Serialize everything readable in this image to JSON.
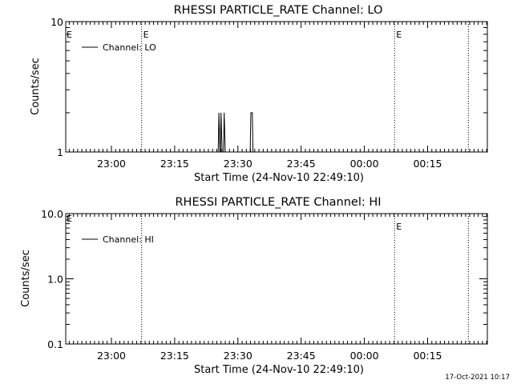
{
  "footer_timestamp": "17-Oct-2021 10:17",
  "chart_data": [
    {
      "type": "line",
      "title": "RHESSI PARTICLE_RATE Channel: LO",
      "xlabel": "Start Time (24-Nov-10 22:49:10)",
      "ylabel": "Counts/sec",
      "yscale": "log",
      "ylim": [
        1,
        10
      ],
      "yticks": [
        {
          "value": 1,
          "label": "1"
        },
        {
          "value": 10,
          "label": "10"
        }
      ],
      "xlim": [
        "22:49:10",
        "00:29:10"
      ],
      "xticks": [
        "23:00",
        "23:15",
        "23:30",
        "23:45",
        "00:00",
        "00:15"
      ],
      "grid": false,
      "legend": {
        "position": "top-left",
        "label": "Channel: LO"
      },
      "series": [
        {
          "name": "Channel: LO",
          "points": [
            {
              "x": "23:25:20",
              "y": 1
            },
            {
              "x": "23:25:30",
              "y": 2
            },
            {
              "x": "23:25:45",
              "y": 1
            },
            {
              "x": "23:25:50",
              "y": 1
            },
            {
              "x": "23:26:00",
              "y": 2
            },
            {
              "x": "23:26:15",
              "y": 1
            },
            {
              "x": "23:26:35",
              "y": 1
            },
            {
              "x": "23:26:45",
              "y": 2
            },
            {
              "x": "23:27:00",
              "y": 1
            },
            {
              "x": "23:32:55",
              "y": 1
            },
            {
              "x": "23:33:05",
              "y": 2
            },
            {
              "x": "23:33:25",
              "y": 2
            },
            {
              "x": "23:33:35",
              "y": 1
            }
          ]
        }
      ],
      "markers": [
        {
          "x": "23:07:10",
          "label": "E"
        },
        {
          "x": "00:07:10",
          "label": "E"
        },
        {
          "x": "00:24:40",
          "label": ""
        }
      ]
    },
    {
      "type": "line",
      "title": "RHESSI PARTICLE_RATE Channel: HI",
      "xlabel": "Start Time (24-Nov-10 22:49:10)",
      "ylabel": "Counts/sec",
      "yscale": "log",
      "ylim": [
        0.1,
        10
      ],
      "yticks": [
        {
          "value": 0.1,
          "label": "0.1"
        },
        {
          "value": 1,
          "label": "1.0"
        },
        {
          "value": 10,
          "label": "10.0"
        }
      ],
      "xlim": [
        "22:49:10",
        "00:29:10"
      ],
      "xticks": [
        "23:00",
        "23:15",
        "23:30",
        "23:45",
        "00:00",
        "00:15"
      ],
      "grid": false,
      "legend": {
        "position": "top-left",
        "label": "Channel: HI"
      },
      "series": [
        {
          "name": "Channel: HI",
          "points": []
        }
      ],
      "markers": [
        {
          "x": "23:07:10",
          "label": ""
        },
        {
          "x": "00:07:10",
          "label": "E"
        },
        {
          "x": "00:24:40",
          "label": ""
        }
      ],
      "corner_markers": [
        {
          "x": "22:49:10",
          "label": "E"
        }
      ]
    }
  ]
}
